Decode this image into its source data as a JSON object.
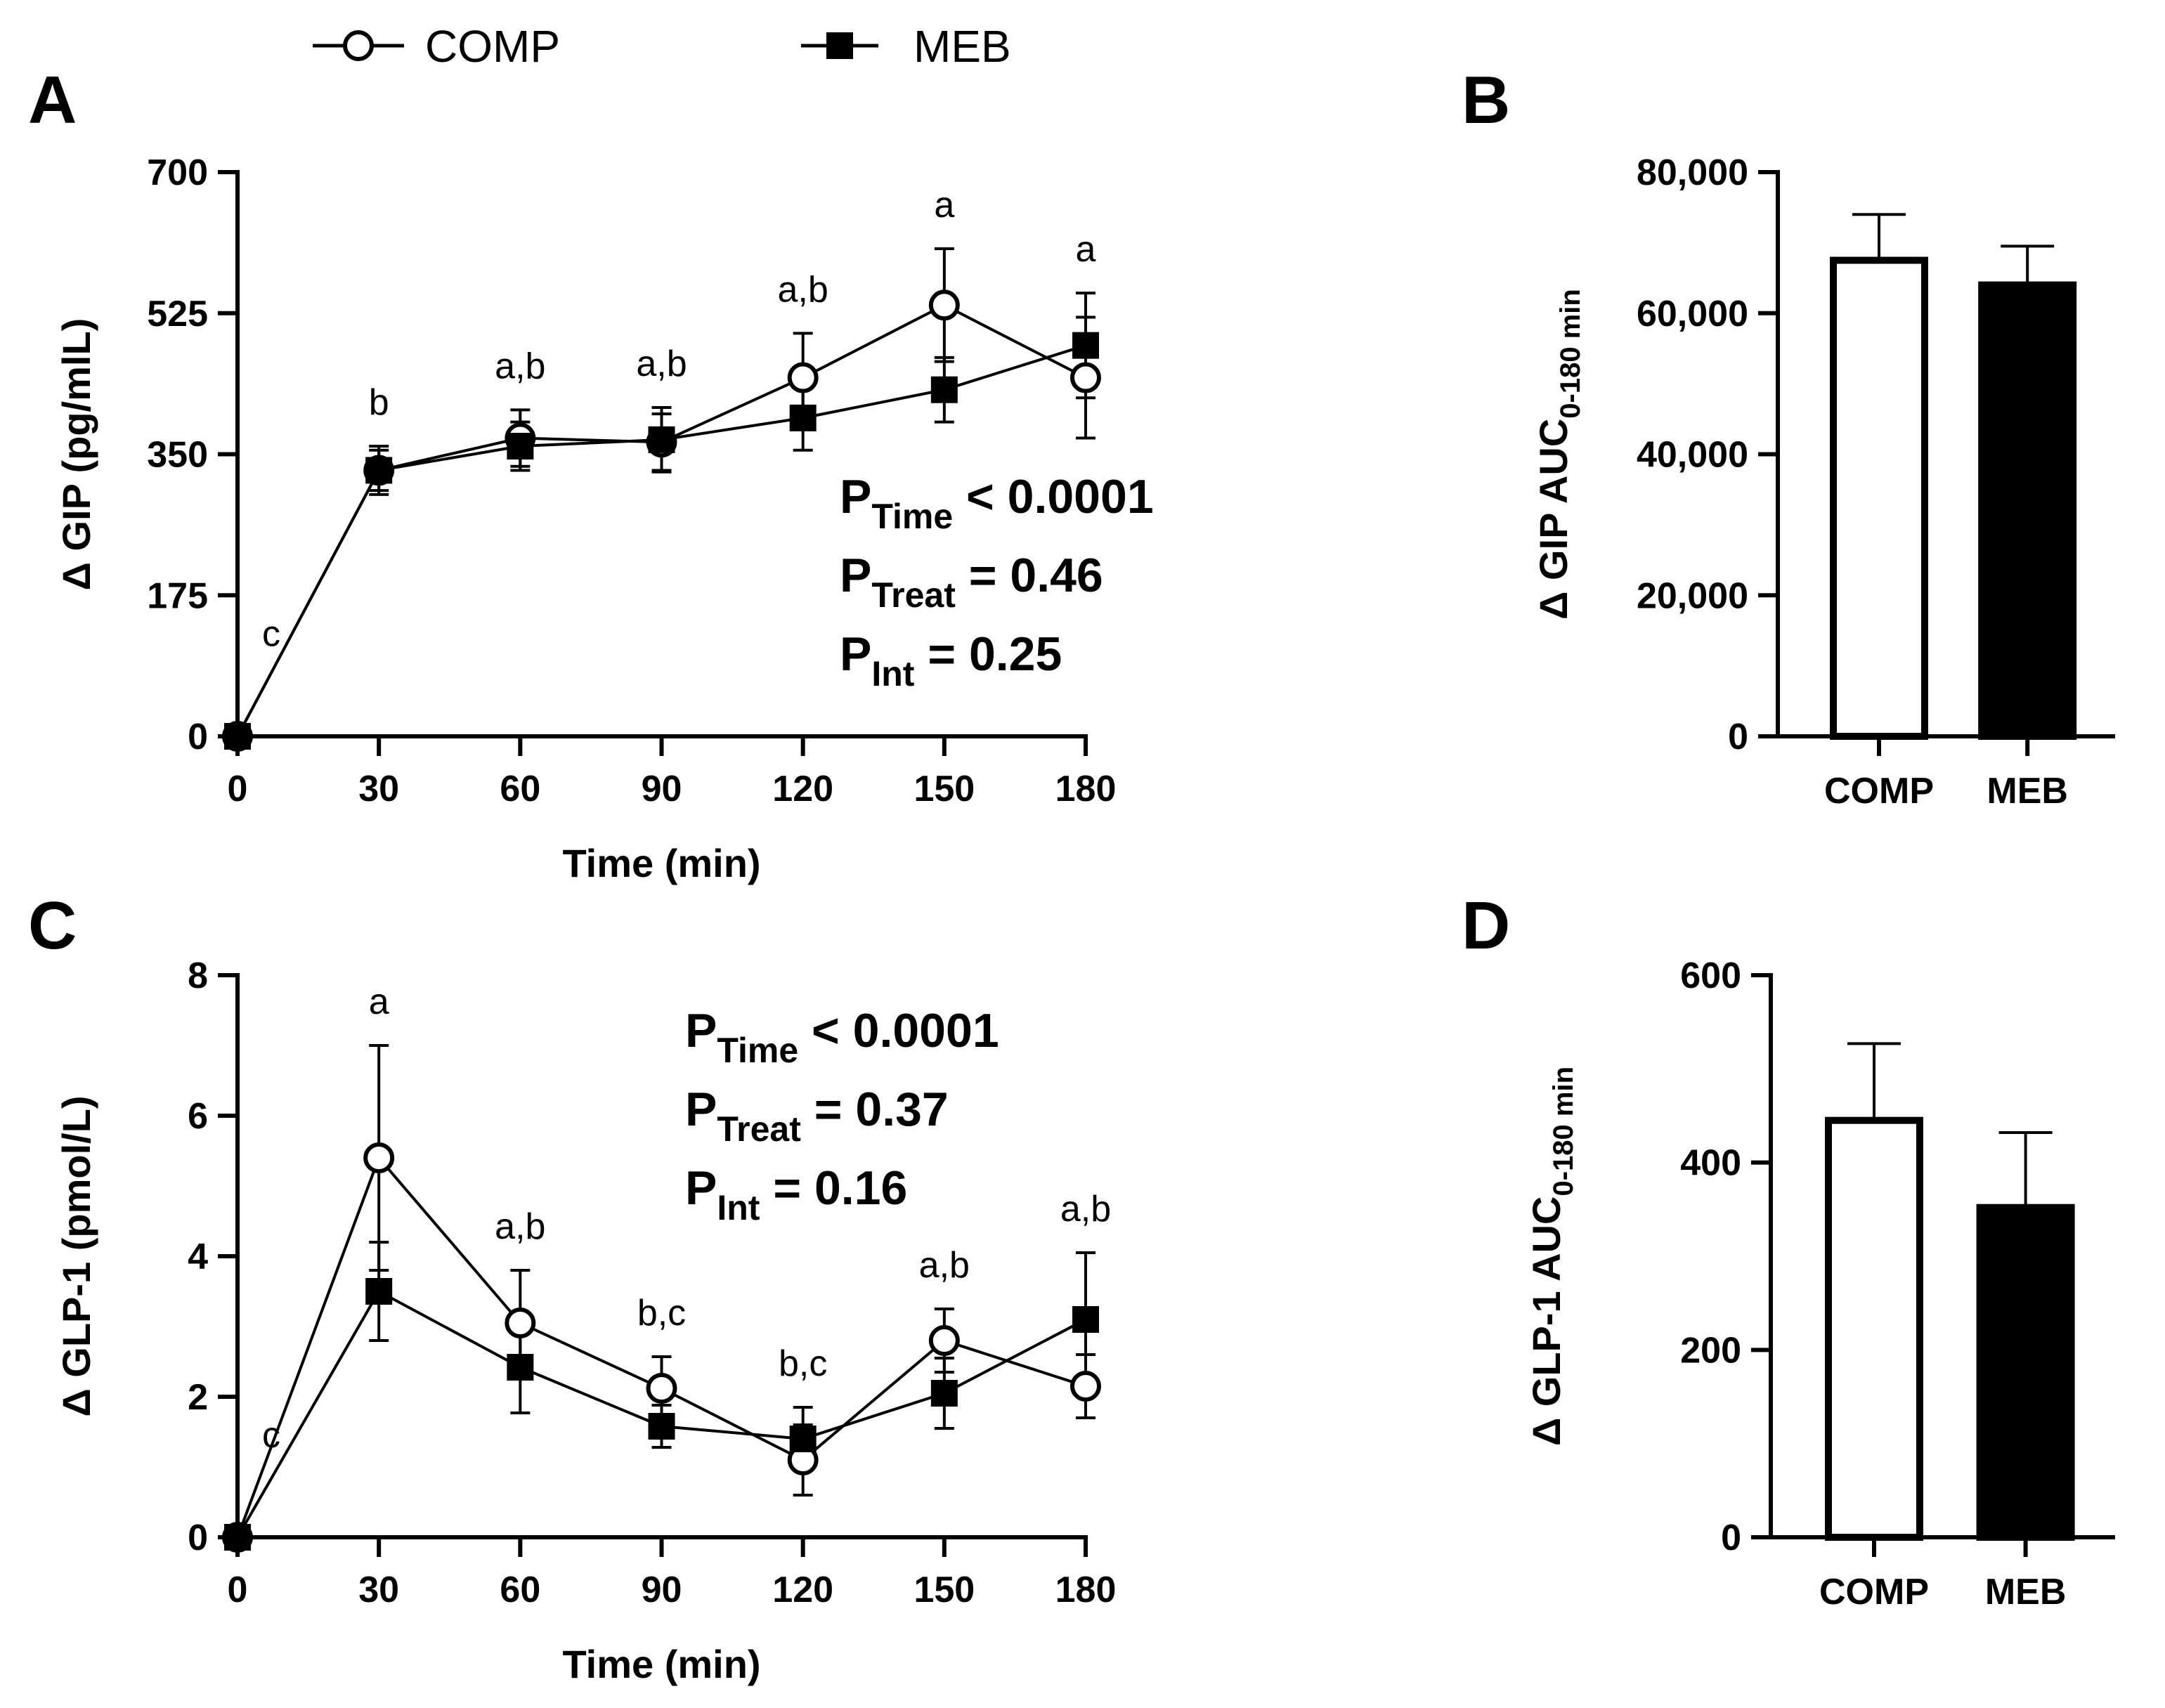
{
  "legend": {
    "series": [
      {
        "name": "COMP",
        "marker": "open-circle"
      },
      {
        "name": "MEB",
        "marker": "filled-square"
      }
    ]
  },
  "chart_data": [
    {
      "panel": "A",
      "type": "line",
      "xlabel": "Time (min)",
      "ylabel": "Δ GIP (pg/mlL)",
      "x": [
        0,
        30,
        60,
        90,
        120,
        150,
        180
      ],
      "xlim": [
        0,
        180
      ],
      "ylim": [
        0,
        700
      ],
      "yticks": [
        0,
        175,
        350,
        525,
        700
      ],
      "yticklabels": [
        "0",
        "175",
        "350",
        "525",
        "700"
      ],
      "series": [
        {
          "name": "COMP",
          "marker": "open-circle",
          "values": [
            0,
            330,
            370,
            365,
            445,
            535,
            445
          ],
          "error": [
            0,
            30,
            35,
            35,
            55,
            70,
            75
          ]
        },
        {
          "name": "MEB",
          "marker": "filled-square",
          "values": [
            0,
            330,
            360,
            368,
            395,
            430,
            485
          ],
          "error": [
            0,
            25,
            30,
            40,
            40,
            40,
            65
          ]
        }
      ],
      "annotations": [
        {
          "x": 0,
          "text": "c"
        },
        {
          "x": 30,
          "text": "b"
        },
        {
          "x": 60,
          "text": "a,b"
        },
        {
          "x": 90,
          "text": "a,b"
        },
        {
          "x": 120,
          "text": "a,b"
        },
        {
          "x": 150,
          "text": "a"
        },
        {
          "x": 180,
          "text": "a"
        }
      ],
      "stats": [
        {
          "p": "P",
          "sub": "Time",
          "rest": " < 0.0001"
        },
        {
          "p": "P",
          "sub": "Treat",
          "rest": " = 0.46"
        },
        {
          "p": "P",
          "sub": "Int",
          "rest": " = 0.25"
        }
      ]
    },
    {
      "panel": "B",
      "type": "bar",
      "ylabel_main": "Δ GIP AUC",
      "ylabel_sub": "0-180 min",
      "categories": [
        "COMP",
        "MEB"
      ],
      "values": [
        67500,
        64000
      ],
      "error": [
        6500,
        5500
      ],
      "fills": [
        "#ffffff",
        "#000000"
      ],
      "ylim": [
        0,
        80000
      ],
      "yticks": [
        0,
        20000,
        40000,
        60000,
        80000
      ],
      "yticklabels": [
        "0",
        "20,000",
        "40,000",
        "60,000",
        "80,000"
      ]
    },
    {
      "panel": "C",
      "type": "line",
      "xlabel": "Time (min)",
      "ylabel": "Δ GLP-1 (pmol/L)",
      "x": [
        0,
        30,
        60,
        90,
        120,
        150,
        180
      ],
      "xlim": [
        0,
        180
      ],
      "ylim": [
        0,
        8
      ],
      "yticks": [
        0,
        2,
        4,
        6,
        8
      ],
      "yticklabels": [
        "0",
        "2",
        "4",
        "6",
        "8"
      ],
      "series": [
        {
          "name": "COMP",
          "marker": "open-circle",
          "values": [
            0,
            5.4,
            3.05,
            2.12,
            1.1,
            2.8,
            2.15
          ],
          "error": [
            0,
            1.6,
            0.75,
            0.45,
            0.5,
            0.45,
            0.45
          ]
        },
        {
          "name": "MEB",
          "marker": "filled-square",
          "values": [
            0,
            3.5,
            2.42,
            1.58,
            1.4,
            2.05,
            3.1
          ],
          "error": [
            0,
            0.7,
            0.65,
            0.3,
            0.45,
            0.5,
            0.95
          ]
        }
      ],
      "annotations": [
        {
          "x": 0,
          "text": "c"
        },
        {
          "x": 30,
          "text": "a"
        },
        {
          "x": 60,
          "text": "a,b"
        },
        {
          "x": 90,
          "text": "b,c"
        },
        {
          "x": 120,
          "text": "b,c"
        },
        {
          "x": 150,
          "text": "a,b"
        },
        {
          "x": 180,
          "text": "a,b"
        }
      ],
      "stats": [
        {
          "p": "P",
          "sub": "Time",
          "rest": " < 0.0001"
        },
        {
          "p": "P",
          "sub": "Treat",
          "rest": " = 0.37"
        },
        {
          "p": "P",
          "sub": "Int",
          "rest": " = 0.16"
        }
      ]
    },
    {
      "panel": "D",
      "type": "bar",
      "ylabel_main": "Δ GLP-1 AUC",
      "ylabel_sub": "0-180 min",
      "categories": [
        "COMP",
        "MEB"
      ],
      "values": [
        445,
        352
      ],
      "error": [
        82,
        80
      ],
      "fills": [
        "#ffffff",
        "#000000"
      ],
      "ylim": [
        0,
        600
      ],
      "yticks": [
        0,
        200,
        400,
        600
      ],
      "yticklabels": [
        "0",
        "200",
        "400",
        "600"
      ]
    }
  ]
}
